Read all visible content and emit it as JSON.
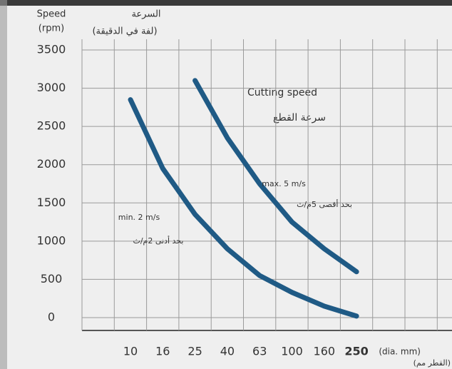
{
  "chart_data": {
    "type": "line",
    "y_label": "Speed",
    "y_unit": "(rpm)",
    "y_label_ar": "السرعة",
    "y_unit_ar": "(لفة في الدقيقة)",
    "x_unit": "(dia. mm)",
    "x_unit_ar": "(القطر مم)",
    "title": "Cutting speed",
    "title_ar": "سرعة القطع",
    "categories": [
      "10",
      "16",
      "25",
      "40",
      "63",
      "100",
      "160",
      "250"
    ],
    "series": [
      {
        "name": "min. 2 m/s",
        "name_ar": "بحد أدنى 2م/ث",
        "color": "#1f5a85",
        "values": [
          2850,
          1950,
          1350,
          900,
          550,
          330,
          150,
          20
        ]
      },
      {
        "name": "max. 5 m/s",
        "name_ar": "بحد أقصى 5م/ث",
        "color": "#1f5a85",
        "values": [
          null,
          null,
          3100,
          2350,
          1750,
          1250,
          900,
          600
        ]
      }
    ],
    "ylim": [
      0,
      3500
    ],
    "yticks": [
      0,
      500,
      1000,
      1500,
      2000,
      2500,
      3000,
      3500
    ],
    "grid": true
  }
}
